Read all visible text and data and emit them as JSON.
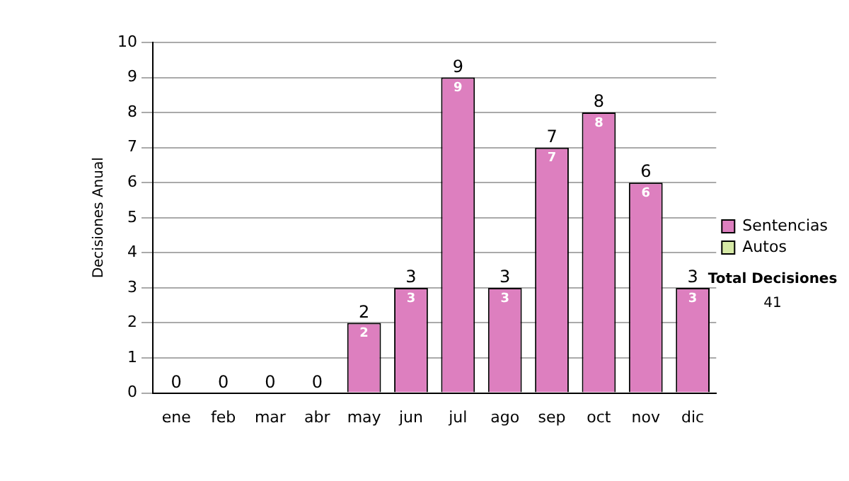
{
  "chart_data": {
    "type": "bar",
    "ylabel": "Decisiones Anual",
    "stacked": true,
    "categories": [
      "ene",
      "feb",
      "mar",
      "abr",
      "may",
      "jun",
      "jul",
      "ago",
      "sep",
      "oct",
      "nov",
      "dic"
    ],
    "series": [
      {
        "name": "Sentencias",
        "color": "#dd7fbf",
        "values": [
          0,
          0,
          0,
          0,
          2,
          3,
          9,
          3,
          7,
          8,
          6,
          3
        ],
        "value_labels": [
          null,
          null,
          null,
          null,
          "2",
          "3",
          "9",
          "3",
          "7",
          "8",
          "6",
          "3"
        ]
      },
      {
        "name": "Autos",
        "color": "#d6e9a6",
        "values": [
          0,
          0,
          0,
          0,
          0,
          0,
          0,
          0,
          0,
          0,
          0,
          0
        ]
      }
    ],
    "totals": [
      "0",
      "0",
      "0",
      "0",
      "2",
      "3",
      "9",
      "3",
      "7",
      "8",
      "6",
      "3"
    ],
    "ylim": [
      0,
      10
    ],
    "yticks": [
      0,
      1,
      2,
      3,
      4,
      5,
      6,
      7,
      8,
      9,
      10
    ],
    "grid": "y",
    "legend": "right",
    "annotations": [
      "Total Decisiones",
      "41"
    ]
  }
}
